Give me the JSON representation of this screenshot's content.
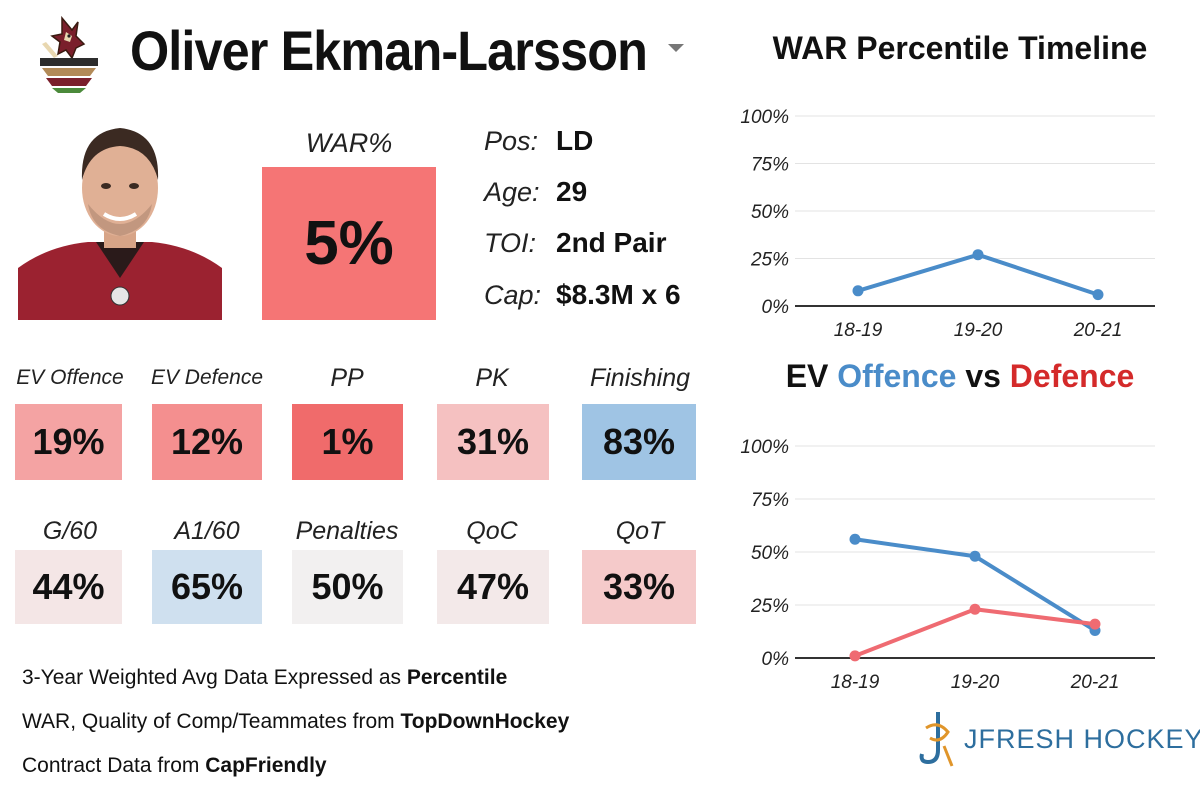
{
  "player": {
    "name": "Oliver Ekman-Larsson",
    "war_label": "WAR%",
    "war_value": "5%",
    "war_color": "#f57575"
  },
  "info": [
    {
      "label": "Pos:",
      "value": "LD"
    },
    {
      "label": "Age:",
      "value": "29"
    },
    {
      "label": "TOI:",
      "value": "2nd Pair"
    },
    {
      "label": "Cap:",
      "value": "$8.3M x 6"
    }
  ],
  "stats_row1": [
    {
      "label": "EV Offence",
      "value": "19%",
      "color": "#f4a3a3"
    },
    {
      "label": "EV Defence",
      "value": "12%",
      "color": "#f48f8f"
    },
    {
      "label": "PP",
      "value": "1%",
      "color": "#f06b6b"
    },
    {
      "label": "PK",
      "value": "31%",
      "color": "#f5c1c1"
    },
    {
      "label": "Finishing",
      "value": "83%",
      "color": "#9fc4e4"
    }
  ],
  "stats_row2": [
    {
      "label": "G/60",
      "value": "44%",
      "color": "#f4e6e6"
    },
    {
      "label": "A1/60",
      "value": "65%",
      "color": "#cfe0ef"
    },
    {
      "label": "Penalties",
      "value": "50%",
      "color": "#f2f0f0"
    },
    {
      "label": "QoC",
      "value": "47%",
      "color": "#f3e9e9"
    },
    {
      "label": "QoT",
      "value": "33%",
      "color": "#f5caca"
    }
  ],
  "footer": [
    {
      "text": "3-Year Weighted Avg Data Expressed as ",
      "bold": "Percentile"
    },
    {
      "text": "WAR, Quality of Comp/Teammates from ",
      "bold": "TopDownHockey"
    },
    {
      "text": "Contract Data from ",
      "bold": "CapFriendly"
    }
  ],
  "brand": "JFRESH HOCKEY",
  "icons": {
    "logo": "coyotes-logo",
    "dropdown": "chevron-down-icon",
    "brand": "jfresh-logo-icon"
  },
  "chart_data": [
    {
      "type": "line",
      "title": "WAR Percentile Timeline",
      "categories": [
        "18-19",
        "19-20",
        "20-21"
      ],
      "series": [
        {
          "values": [
            8,
            27,
            6
          ],
          "color": "#4a8cc9"
        }
      ],
      "ylim": [
        0,
        100
      ],
      "yticks": [
        "0%",
        "25%",
        "50%",
        "75%",
        "100%"
      ],
      "grid": true
    },
    {
      "type": "line",
      "title_parts": {
        "prefix": "EV ",
        "offence": "Offence",
        "mid": " vs ",
        "defence": "Defence"
      },
      "categories": [
        "18-19",
        "19-20",
        "20-21"
      ],
      "series": [
        {
          "name": "Offence",
          "values": [
            56,
            48,
            13
          ],
          "color": "#4a8cc9"
        },
        {
          "name": "Defence",
          "values": [
            1,
            23,
            16
          ],
          "color": "#ef6b72"
        }
      ],
      "ylim": [
        0,
        100
      ],
      "yticks": [
        "0%",
        "25%",
        "50%",
        "75%",
        "100%"
      ],
      "grid": true
    }
  ]
}
